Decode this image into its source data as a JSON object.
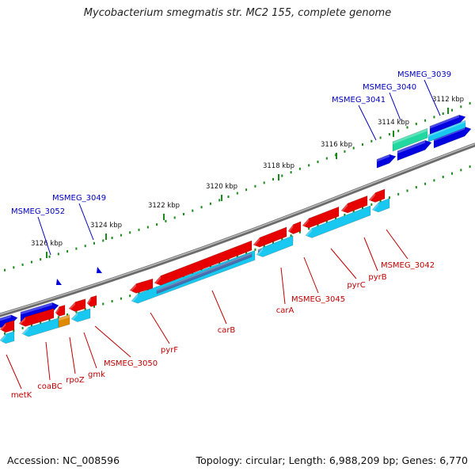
{
  "title": "Mycobacterium smegmatis str. MC2 155, complete genome",
  "footer": {
    "accession": "Accession: NC_008596",
    "summary": "Topology: circular; Length: 6,988,209 bp; Genes: 6,770"
  },
  "ticks": [
    "3112 kbp",
    "3114 kbp",
    "3116 kbp",
    "3118 kbp",
    "3120 kbp",
    "3122 kbp",
    "3124 kbp",
    "3126 kbp"
  ],
  "top_genes": [
    "MSMEG_3039",
    "MSMEG_3040",
    "MSMEG_3041",
    "MSMEG_3049",
    "MSMEG_3052"
  ],
  "bottom_genes": [
    "metK",
    "coaBC",
    "rpoZ",
    "gmk",
    "MSMEG_3050",
    "pyrF",
    "carB",
    "carA",
    "MSMEG_3045",
    "pyrC",
    "pyrB",
    "MSMEG_3042"
  ],
  "colors": {
    "forward_cds": "#0000e0",
    "reverse_cds": "#e60000",
    "reverse_gene": "#19c8f0",
    "other_gene": "#e08a00",
    "rna": "#20d8a0",
    "backbone": "#808080",
    "tick": "#1a8a1a",
    "forward_label": "#0000c0",
    "reverse_label": "#c00000"
  }
}
